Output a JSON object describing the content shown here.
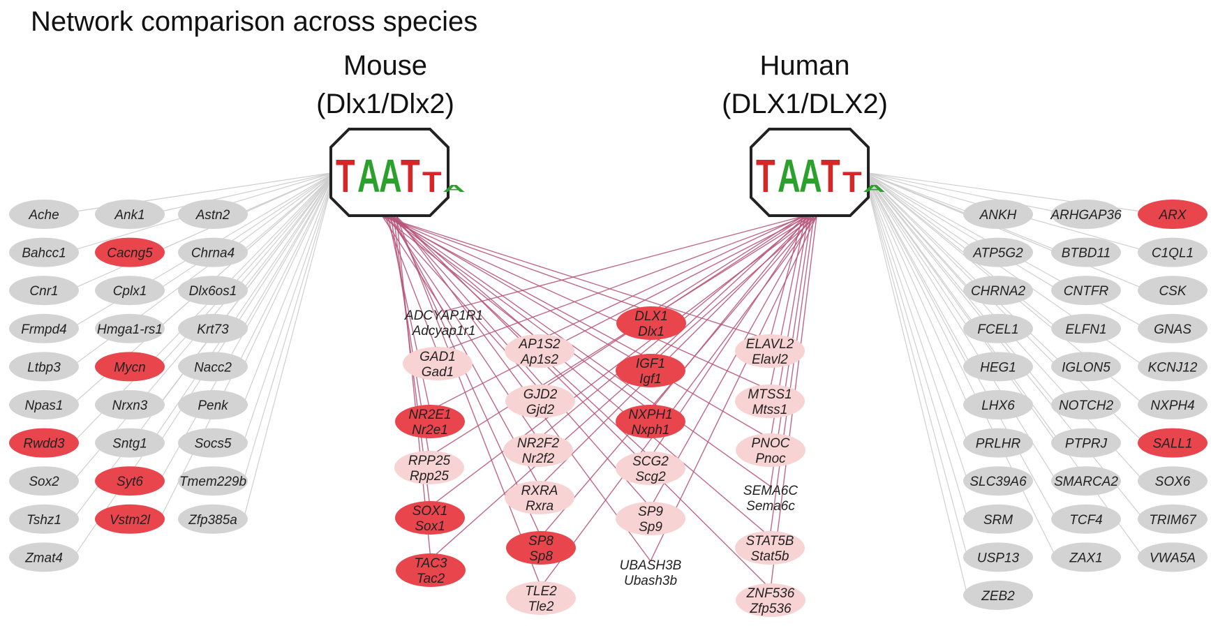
{
  "title": "Network comparison across species",
  "species": [
    {
      "id": "mouse",
      "name": "Mouse",
      "factor": "(Dlx1/Dlx2)"
    },
    {
      "id": "human",
      "name": "Human",
      "factor": "(DLX1/DLX2)"
    }
  ],
  "motif_logo": [
    "T",
    "A",
    "A",
    "T",
    "T",
    "A"
  ],
  "colors": {
    "gray_node": "#d3d3d3",
    "red_node": "#e8454d",
    "pink_node": "#f7d3d3",
    "gray_edge": "#cfcfcf",
    "shared_edge": "#b8577a",
    "logo_T": "#d62728",
    "logo_A": "#2ca02c",
    "logo_C": "#1f77b4",
    "logo_G": "#ff9f1a"
  },
  "mouse_only_genes": [
    {
      "label": "Ache",
      "highlight": false
    },
    {
      "label": "Ank1",
      "highlight": false
    },
    {
      "label": "Astn2",
      "highlight": false
    },
    {
      "label": "Bahcc1",
      "highlight": false
    },
    {
      "label": "Cacng5",
      "highlight": true
    },
    {
      "label": "Chrna4",
      "highlight": false
    },
    {
      "label": "Cnr1",
      "highlight": false
    },
    {
      "label": "Cplx1",
      "highlight": false
    },
    {
      "label": "Dlx6os1",
      "highlight": false
    },
    {
      "label": "Frmpd4",
      "highlight": false
    },
    {
      "label": "Hmga1-rs1",
      "highlight": false
    },
    {
      "label": "Krt73",
      "highlight": false
    },
    {
      "label": "Ltbp3",
      "highlight": false
    },
    {
      "label": "Mycn",
      "highlight": true
    },
    {
      "label": "Nacc2",
      "highlight": false
    },
    {
      "label": "Npas1",
      "highlight": false
    },
    {
      "label": "Nrxn3",
      "highlight": false
    },
    {
      "label": "Penk",
      "highlight": false
    },
    {
      "label": "Rwdd3",
      "highlight": true
    },
    {
      "label": "Sntg1",
      "highlight": false
    },
    {
      "label": "Socs5",
      "highlight": false
    },
    {
      "label": "Sox2",
      "highlight": false
    },
    {
      "label": "Syt6",
      "highlight": true
    },
    {
      "label": "Tmem229b",
      "highlight": false
    },
    {
      "label": "Tshz1",
      "highlight": false
    },
    {
      "label": "Vstm2l",
      "highlight": true
    },
    {
      "label": "Zfp385a",
      "highlight": false
    },
    {
      "label": "Zmat4",
      "highlight": false
    }
  ],
  "shared_genes": [
    {
      "human": "ADCYAP1R1",
      "mouse": "Adcyap1r1",
      "highlight": "none"
    },
    {
      "human": "GAD1",
      "mouse": "Gad1",
      "highlight": "pink"
    },
    {
      "human": "NR2E1",
      "mouse": "Nr2e1",
      "highlight": "red"
    },
    {
      "human": "RPP25",
      "mouse": "Rpp25",
      "highlight": "pink"
    },
    {
      "human": "SOX1",
      "mouse": "Sox1",
      "highlight": "red"
    },
    {
      "human": "TAC3",
      "mouse": "Tac2",
      "highlight": "red"
    },
    {
      "human": "AP1S2",
      "mouse": "Ap1s2",
      "highlight": "pink"
    },
    {
      "human": "GJD2",
      "mouse": "Gjd2",
      "highlight": "pink"
    },
    {
      "human": "NR2F2",
      "mouse": "Nr2f2",
      "highlight": "pink"
    },
    {
      "human": "RXRA",
      "mouse": "Rxra",
      "highlight": "pink"
    },
    {
      "human": "SP8",
      "mouse": "Sp8",
      "highlight": "red"
    },
    {
      "human": "TLE2",
      "mouse": "Tle2",
      "highlight": "pink"
    },
    {
      "human": "DLX1",
      "mouse": "Dlx1",
      "highlight": "red"
    },
    {
      "human": "IGF1",
      "mouse": "Igf1",
      "highlight": "red"
    },
    {
      "human": "NXPH1",
      "mouse": "Nxph1",
      "highlight": "red"
    },
    {
      "human": "SCG2",
      "mouse": "Scg2",
      "highlight": "pink"
    },
    {
      "human": "SP9",
      "mouse": "Sp9",
      "highlight": "pink"
    },
    {
      "human": "UBASH3B",
      "mouse": "Ubash3b",
      "highlight": "none"
    },
    {
      "human": "ELAVL2",
      "mouse": "Elavl2",
      "highlight": "pink"
    },
    {
      "human": "MTSS1",
      "mouse": "Mtss1",
      "highlight": "pink"
    },
    {
      "human": "PNOC",
      "mouse": "Pnoc",
      "highlight": "pink"
    },
    {
      "human": "SEMA6C",
      "mouse": "Sema6c",
      "highlight": "none"
    },
    {
      "human": "STAT5B",
      "mouse": "Stat5b",
      "highlight": "pink"
    },
    {
      "human": "ZNF536",
      "mouse": "Zfp536",
      "highlight": "pink"
    }
  ],
  "human_only_genes": [
    {
      "label": "ANKH",
      "highlight": false
    },
    {
      "label": "ARHGAP36",
      "highlight": false
    },
    {
      "label": "ARX",
      "highlight": true
    },
    {
      "label": "ATP5G2",
      "highlight": false
    },
    {
      "label": "BTBD11",
      "highlight": false
    },
    {
      "label": "C1QL1",
      "highlight": false
    },
    {
      "label": "CHRNA2",
      "highlight": false
    },
    {
      "label": "CNTFR",
      "highlight": false
    },
    {
      "label": "CSK",
      "highlight": false
    },
    {
      "label": "FCEL1",
      "highlight": false
    },
    {
      "label": "ELFN1",
      "highlight": false
    },
    {
      "label": "GNAS",
      "highlight": false
    },
    {
      "label": "HEG1",
      "highlight": false
    },
    {
      "label": "IGLON5",
      "highlight": false
    },
    {
      "label": "KCNJ12",
      "highlight": false
    },
    {
      "label": "LHX6",
      "highlight": false
    },
    {
      "label": "NOTCH2",
      "highlight": false
    },
    {
      "label": "NXPH4",
      "highlight": false
    },
    {
      "label": "PRLHR",
      "highlight": false
    },
    {
      "label": "PTPRJ",
      "highlight": false
    },
    {
      "label": "SALL1",
      "highlight": true
    },
    {
      "label": "SLC39A6",
      "highlight": false
    },
    {
      "label": "SMARCA2",
      "highlight": false
    },
    {
      "label": "SOX6",
      "highlight": false
    },
    {
      "label": "SRM",
      "highlight": false
    },
    {
      "label": "TCF4",
      "highlight": false
    },
    {
      "label": "TRIM67",
      "highlight": false
    },
    {
      "label": "USP13",
      "highlight": false
    },
    {
      "label": "ZAX1",
      "highlight": false
    },
    {
      "label": "VWA5A",
      "highlight": false
    },
    {
      "label": "ZEB2",
      "highlight": false
    }
  ]
}
